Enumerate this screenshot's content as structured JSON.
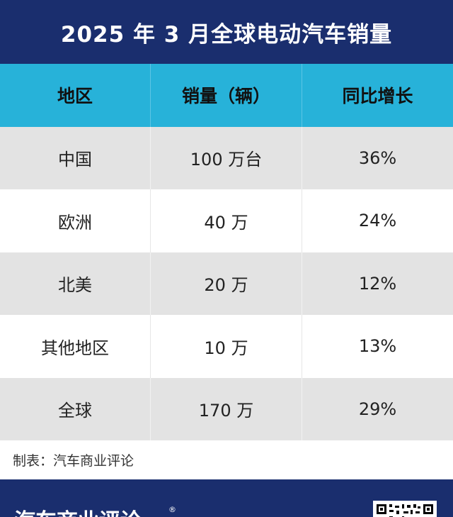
{
  "title": "2025 年 3 月全球电动汽车销量",
  "chart_data": {
    "type": "table",
    "columns": [
      "地区",
      "销量（辆）",
      "同比增长"
    ],
    "rows": [
      [
        "中国",
        "100 万台",
        "36%"
      ],
      [
        "欧洲",
        "40 万",
        "24%"
      ],
      [
        "北美",
        "20 万",
        "12%"
      ],
      [
        "其他地区",
        "10 万",
        "13%"
      ],
      [
        "全球",
        "170 万",
        "29%"
      ]
    ]
  },
  "source": "制表：汽车商业评论",
  "footer": {
    "logo": "汽车商业评论",
    "registered": "®"
  },
  "colors": {
    "title_bg": "#1a2e6e",
    "header_bg": "#27b2d9",
    "row_alt_bg": "#e3e3e3"
  }
}
